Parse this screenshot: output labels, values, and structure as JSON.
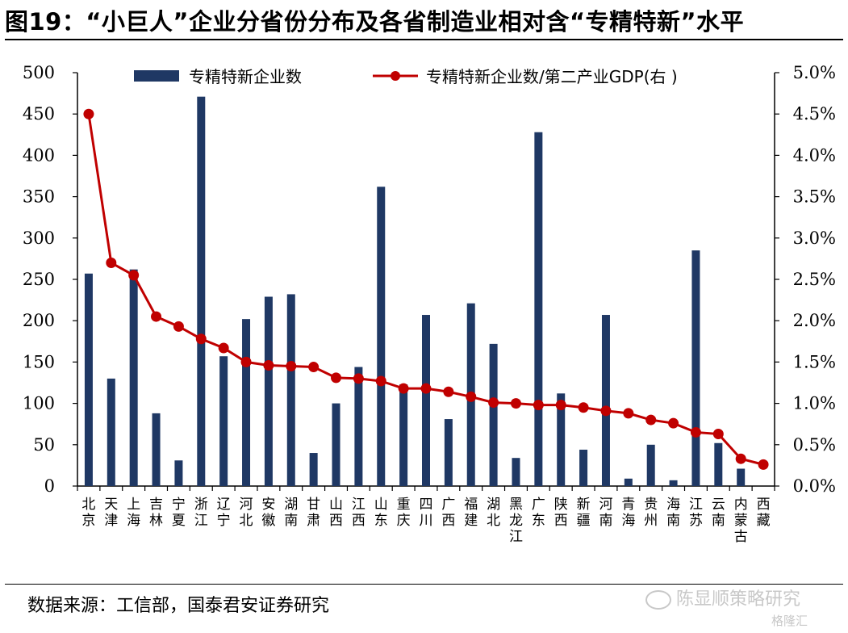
{
  "header": {
    "title": "图19：“小巨人”企业分省份分布及各省制造业相对含“专精特新”水平"
  },
  "footer": {
    "source": "数据来源：工信部，国泰君安证券研究",
    "watermark": "陈显顺策略研究",
    "watermark_small": "格隆汇"
  },
  "colors": {
    "bar": "#1f3864",
    "line": "#c00000"
  },
  "chart_data": {
    "type": "bar",
    "categories": [
      "北京",
      "天津",
      "上海",
      "吉林",
      "宁夏",
      "浙江",
      "辽宁",
      "河北",
      "安徽",
      "湖南",
      "甘肃",
      "山西",
      "江西",
      "山东",
      "重庆",
      "四川",
      "广西",
      "福建",
      "湖北",
      "黑龙江",
      "广东",
      "陕西",
      "新疆",
      "河南",
      "青海",
      "贵州",
      "海南",
      "江苏",
      "云南",
      "内蒙古",
      "西藏"
    ],
    "series": [
      {
        "name": "专精特新企业数",
        "type": "bar",
        "axis": "left",
        "values": [
          257,
          130,
          262,
          88,
          31,
          471,
          157,
          202,
          229,
          232,
          40,
          100,
          144,
          362,
          123,
          207,
          81,
          221,
          172,
          34,
          428,
          112,
          44,
          207,
          9,
          50,
          7,
          285,
          52,
          21,
          0
        ]
      },
      {
        "name": "专精特新企业数/第二产业GDP(右 )",
        "type": "line",
        "axis": "right",
        "values": [
          4.5,
          2.7,
          2.55,
          2.05,
          1.93,
          1.78,
          1.67,
          1.5,
          1.46,
          1.45,
          1.44,
          1.31,
          1.3,
          1.27,
          1.18,
          1.18,
          1.14,
          1.08,
          1.01,
          1.0,
          0.98,
          0.98,
          0.95,
          0.91,
          0.88,
          0.8,
          0.76,
          0.65,
          0.63,
          0.33,
          0.26
        ]
      }
    ],
    "y_left": {
      "min": 0,
      "max": 500,
      "step": 50,
      "ticks": [
        "0",
        "50",
        "100",
        "150",
        "200",
        "250",
        "300",
        "350",
        "400",
        "450",
        "500"
      ]
    },
    "y_right": {
      "min": 0,
      "max": 5,
      "step": 0.5,
      "unit": "%",
      "ticks": [
        "0.0%",
        "0.5%",
        "1.0%",
        "1.5%",
        "2.0%",
        "2.5%",
        "3.0%",
        "3.5%",
        "4.0%",
        "4.5%",
        "5.0%"
      ]
    },
    "grid": false,
    "legend_position": "top"
  }
}
